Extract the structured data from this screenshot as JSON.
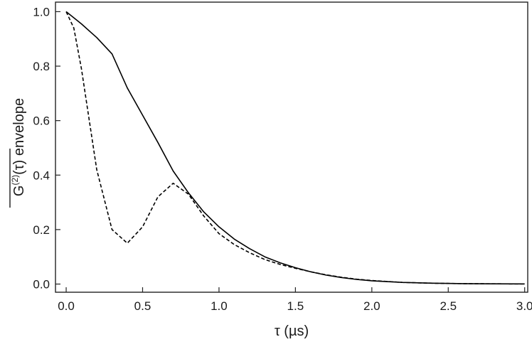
{
  "chart_data": {
    "type": "line",
    "title": "",
    "xlabel": "τ (µs)",
    "ylabel": {
      "base": "G",
      "superscript": "(2)",
      "argument": "(τ)",
      "suffix": " envelope",
      "overline": true
    },
    "xlim": [
      -0.07,
      3.02
    ],
    "ylim": [
      -0.03,
      1.035
    ],
    "xticks": [
      0.0,
      0.5,
      1.0,
      1.5,
      2.0,
      2.5,
      3.0
    ],
    "xtick_labels": [
      "0.0",
      "0.5",
      "1.0",
      "1.5",
      "2.0",
      "2.5",
      "3.0"
    ],
    "yticks": [
      0.0,
      0.2,
      0.4,
      0.6,
      0.8,
      1.0
    ],
    "ytick_labels": [
      "0.0",
      "0.2",
      "0.4",
      "0.6",
      "0.8",
      "1.0"
    ],
    "grid": false,
    "legend": "none",
    "colors": {
      "line": "#000000",
      "axis": "#222222",
      "text": "#1a1a1a"
    },
    "series": [
      {
        "style": "solid",
        "x": [
          0.0,
          0.1,
          0.2,
          0.3,
          0.4,
          0.5,
          0.6,
          0.7,
          0.8,
          0.9,
          1.0,
          1.1,
          1.2,
          1.3,
          1.4,
          1.5,
          1.6,
          1.7,
          1.8,
          1.9,
          2.0,
          2.2,
          2.4,
          2.6,
          2.8,
          3.0
        ],
        "y": [
          1.0,
          0.955,
          0.905,
          0.845,
          0.72,
          0.62,
          0.52,
          0.415,
          0.335,
          0.265,
          0.21,
          0.165,
          0.13,
          0.1,
          0.078,
          0.06,
          0.045,
          0.033,
          0.024,
          0.017,
          0.012,
          0.006,
          0.003,
          0.0015,
          0.0008,
          0.0004
        ]
      },
      {
        "style": "dashed",
        "x": [
          0.0,
          0.05,
          0.1,
          0.2,
          0.3,
          0.4,
          0.5,
          0.6,
          0.7,
          0.8,
          0.9,
          1.0,
          1.1,
          1.2,
          1.3,
          1.4,
          1.5,
          1.6,
          1.7,
          1.8,
          1.9,
          2.0,
          2.2,
          2.4,
          2.6,
          2.8,
          3.0
        ],
        "y": [
          1.0,
          0.94,
          0.79,
          0.42,
          0.2,
          0.15,
          0.21,
          0.32,
          0.37,
          0.33,
          0.25,
          0.185,
          0.145,
          0.115,
          0.09,
          0.072,
          0.058,
          0.045,
          0.034,
          0.025,
          0.018,
          0.013,
          0.006,
          0.003,
          0.0015,
          0.0008,
          0.0004
        ]
      }
    ]
  }
}
